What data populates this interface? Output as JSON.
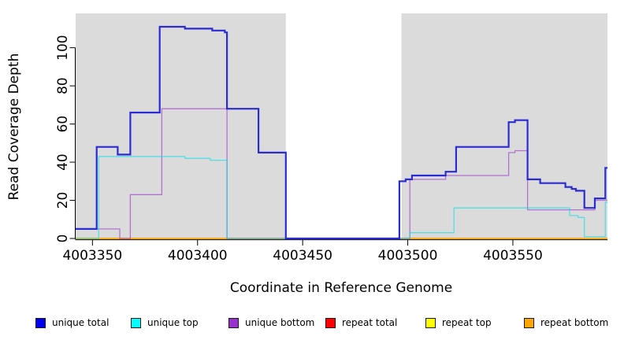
{
  "figure": {
    "title": "",
    "xlabel": "Coordinate in Reference Genome",
    "ylabel": "Read Coverage Depth"
  },
  "chart_data": {
    "type": "line",
    "subtype": "step-coverage",
    "title": "",
    "xlabel": "Coordinate in Reference Genome",
    "ylabel": "Read Coverage Depth",
    "xlim": [
      4003342,
      4003595
    ],
    "ylim": [
      0,
      118
    ],
    "grid": false,
    "legend_position": "bottom",
    "x_ticks": [
      {
        "value": 4003350,
        "label": "4003350"
      },
      {
        "value": 4003400,
        "label": "4003400"
      },
      {
        "value": 4003450,
        "label": "4003450"
      },
      {
        "value": 4003500,
        "label": "4003500"
      },
      {
        "value": 4003550,
        "label": "4003550"
      }
    ],
    "y_ticks": [
      {
        "value": 0,
        "label": "0"
      },
      {
        "value": 20,
        "label": "20"
      },
      {
        "value": 40,
        "label": "40"
      },
      {
        "value": 60,
        "label": "60"
      },
      {
        "value": 80,
        "label": "80"
      },
      {
        "value": 100,
        "label": "100"
      }
    ],
    "background_regions": [
      {
        "name": "shaded-region-left",
        "x0": 4003342,
        "x1": 4003442,
        "color": "#DBDBDB"
      },
      {
        "name": "shaded-region-right",
        "x0": 4003497,
        "x1": 4003595,
        "color": "#DBDBDB"
      }
    ],
    "x_end": 4003595,
    "series": [
      {
        "name": "repeat total",
        "line_color": "#FF0000",
        "opacity": 1,
        "width": 1.2,
        "points": [
          [
            4003342,
            0
          ]
        ]
      },
      {
        "name": "repeat top",
        "line_color": "#FFFF00",
        "opacity": 1,
        "width": 1.2,
        "points": [
          [
            4003342,
            0
          ]
        ]
      },
      {
        "name": "repeat bottom",
        "line_color": "#FFA500",
        "opacity": 1,
        "width": 1.4,
        "points": [
          [
            4003342,
            0
          ]
        ]
      },
      {
        "name": "unique bottom",
        "line_color": "#9932CC",
        "opacity": 0.62,
        "width": 1.3,
        "points": [
          [
            4003342,
            5
          ],
          [
            4003363,
            0
          ],
          [
            4003368,
            23
          ],
          [
            4003383,
            68
          ],
          [
            4003414,
            0
          ],
          [
            4003501,
            31
          ],
          [
            4003518,
            33
          ],
          [
            4003548,
            45
          ],
          [
            4003551,
            46
          ],
          [
            4003557,
            15
          ],
          [
            4003589,
            20
          ]
        ]
      },
      {
        "name": "unique top",
        "line_color": "#00E0E8",
        "opacity": 0.62,
        "width": 1.3,
        "points": [
          [
            4003342,
            0
          ],
          [
            4003353,
            43
          ],
          [
            4003394,
            42
          ],
          [
            4003406,
            41
          ],
          [
            4003414,
            0
          ],
          [
            4003501,
            3
          ],
          [
            4003522,
            16
          ],
          [
            4003577,
            12
          ],
          [
            4003581,
            11
          ],
          [
            4003584,
            1
          ],
          [
            4003594,
            19
          ]
        ]
      },
      {
        "name": "unique total",
        "line_color": "#2B2BD6",
        "opacity": 1,
        "width": 2.2,
        "points": [
          [
            4003342,
            5
          ],
          [
            4003352,
            48
          ],
          [
            4003362,
            44
          ],
          [
            4003368,
            66
          ],
          [
            4003382,
            111
          ],
          [
            4003394,
            110
          ],
          [
            4003407,
            109
          ],
          [
            4003413,
            108
          ],
          [
            4003414,
            68
          ],
          [
            4003429,
            45
          ],
          [
            4003442,
            0
          ],
          [
            4003496,
            30
          ],
          [
            4003499,
            31
          ],
          [
            4003502,
            33
          ],
          [
            4003518,
            35
          ],
          [
            4003523,
            48
          ],
          [
            4003548,
            61
          ],
          [
            4003551,
            62
          ],
          [
            4003557,
            31
          ],
          [
            4003563,
            29
          ],
          [
            4003575,
            27
          ],
          [
            4003578,
            26
          ],
          [
            4003580,
            25
          ],
          [
            4003584,
            16
          ],
          [
            4003589,
            21
          ],
          [
            4003594,
            37
          ]
        ]
      }
    ],
    "legend": [
      {
        "label": "unique total",
        "color": "#0000EE"
      },
      {
        "label": "unique top",
        "color": "#00FFFF"
      },
      {
        "label": "unique bottom",
        "color": "#9932CC"
      },
      {
        "label": "repeat total",
        "color": "#FF0000"
      },
      {
        "label": "repeat top",
        "color": "#FFFF00"
      },
      {
        "label": "repeat bottom",
        "color": "#FFA500"
      }
    ]
  }
}
